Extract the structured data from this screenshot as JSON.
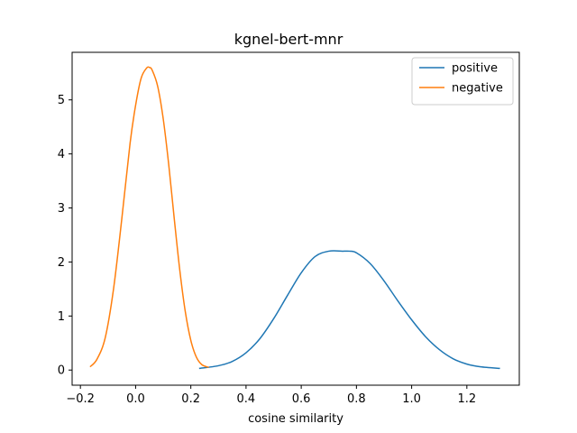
{
  "chart_data": {
    "type": "line",
    "title": "kgnel-bert-mnr",
    "xlabel": "cosine similarity",
    "ylabel": "",
    "xlim": [
      -0.23,
      1.39
    ],
    "ylim": [
      -0.28,
      5.88
    ],
    "xticks": [
      -0.2,
      0.0,
      0.2,
      0.4,
      0.6,
      0.8,
      1.0,
      1.2
    ],
    "xtick_labels": [
      "−0.2",
      "0.0",
      "0.2",
      "0.4",
      "0.6",
      "0.8",
      "1.0",
      "1.2"
    ],
    "yticks": [
      0,
      1,
      2,
      3,
      4,
      5
    ],
    "ytick_labels": [
      "0",
      "1",
      "2",
      "3",
      "4",
      "5"
    ],
    "grid": false,
    "legend_position": "top-right",
    "series": [
      {
        "name": "positive",
        "color": "#1f77b4",
        "x": [
          0.23,
          0.3,
          0.35,
          0.4,
          0.45,
          0.5,
          0.55,
          0.6,
          0.65,
          0.7,
          0.75,
          0.775,
          0.8,
          0.85,
          0.9,
          0.95,
          1.0,
          1.05,
          1.1,
          1.15,
          1.2,
          1.25,
          1.32
        ],
        "y": [
          0.03,
          0.08,
          0.16,
          0.32,
          0.58,
          0.95,
          1.38,
          1.8,
          2.1,
          2.2,
          2.2,
          2.2,
          2.17,
          1.97,
          1.65,
          1.28,
          0.93,
          0.62,
          0.38,
          0.21,
          0.11,
          0.06,
          0.03
        ]
      },
      {
        "name": "negative",
        "color": "#ff7f0e",
        "x": [
          -0.165,
          -0.14,
          -0.11,
          -0.08,
          -0.05,
          -0.02,
          0.0,
          0.02,
          0.04,
          0.05,
          0.06,
          0.08,
          0.1,
          0.12,
          0.14,
          0.16,
          0.18,
          0.2,
          0.22,
          0.24,
          0.265
        ],
        "y": [
          0.06,
          0.2,
          0.6,
          1.5,
          2.8,
          4.2,
          4.9,
          5.4,
          5.59,
          5.6,
          5.55,
          5.25,
          4.65,
          3.8,
          2.8,
          1.85,
          1.08,
          0.55,
          0.24,
          0.1,
          0.05
        ]
      }
    ]
  }
}
